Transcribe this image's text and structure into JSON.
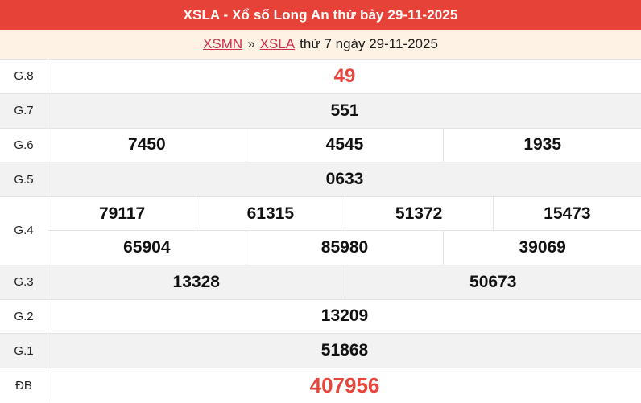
{
  "header": {
    "title": "XSLA - Xổ số Long An thứ bảy 29-11-2025"
  },
  "breadcrumb": {
    "links": [
      {
        "label": "XSMN"
      },
      {
        "label": "XSLA"
      }
    ],
    "separator": "»",
    "suffix": "thứ 7 ngày 29-11-2025"
  },
  "results": {
    "rows": [
      {
        "key": "g8",
        "label": "G.8",
        "highlight": true,
        "groups": [
          [
            "49"
          ]
        ]
      },
      {
        "key": "g7",
        "label": "G.7",
        "highlight": false,
        "groups": [
          [
            "551"
          ]
        ]
      },
      {
        "key": "g6",
        "label": "G.6",
        "highlight": false,
        "groups": [
          [
            "7450",
            "4545",
            "1935"
          ]
        ]
      },
      {
        "key": "g5",
        "label": "G.5",
        "highlight": false,
        "groups": [
          [
            "0633"
          ]
        ]
      },
      {
        "key": "g4",
        "label": "G.4",
        "highlight": false,
        "groups": [
          [
            "79117",
            "61315",
            "51372",
            "15473"
          ],
          [
            "65904",
            "85980",
            "39069"
          ]
        ]
      },
      {
        "key": "g3",
        "label": "G.3",
        "highlight": false,
        "groups": [
          [
            "13328",
            "50673"
          ]
        ]
      },
      {
        "key": "g2",
        "label": "G.2",
        "highlight": false,
        "groups": [
          [
            "13209"
          ]
        ]
      },
      {
        "key": "g1",
        "label": "G.1",
        "highlight": false,
        "groups": [
          [
            "51868"
          ]
        ]
      },
      {
        "key": "db",
        "label": "ĐB",
        "highlight": true,
        "groups": [
          [
            "407956"
          ]
        ]
      }
    ]
  },
  "colors": {
    "banner_bg": "#e74238",
    "banner_text": "#ffffff",
    "breadcrumb_bg": "#fdf2e4",
    "link_red": "#d02e4c",
    "accent_red": "#e8463c",
    "stripe": "#f2f2f2",
    "border": "#e3e3e3"
  }
}
